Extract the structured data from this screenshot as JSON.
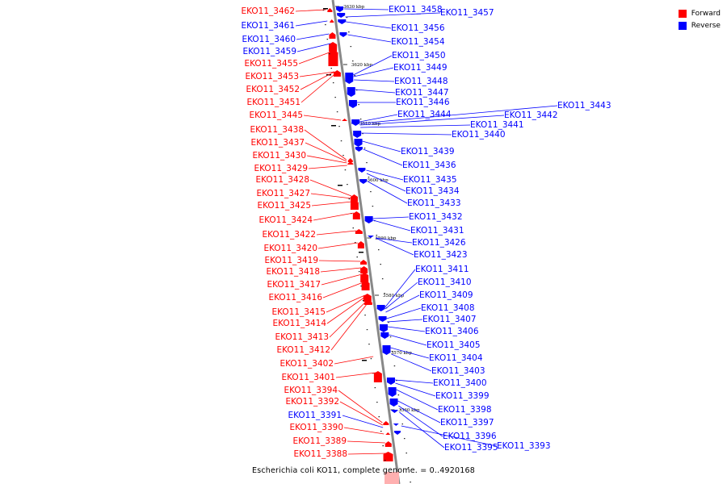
{
  "legend": [
    {
      "label": "Forward",
      "color": "#ff0000"
    },
    {
      "label": "Reverse",
      "color": "#0000ff"
    }
  ],
  "caption": "Escherichia coli KO11, complete genome. = 0..4920168",
  "colors": {
    "forward": "#ff0000",
    "reverse": "#0000ff",
    "backbone": "#888888"
  },
  "ticks": [
    "3630 kbp",
    "3620 kbp",
    "3610 kbp",
    "3600 kbp",
    "3590 kbp",
    "3580 kbp",
    "3570 kbp",
    "3560 kbp"
  ],
  "forward_labels": [
    "EKO11_3462",
    "EKO11_3461",
    "EKO11_3460",
    "EKO11_3459",
    "EKO11_3455",
    "EKO11_3453",
    "EKO11_3452",
    "EKO11_3451",
    "EKO11_3445",
    "EKO11_3438",
    "EKO11_3437",
    "EKO11_3430",
    "EKO11_3429",
    "EKO11_3428",
    "EKO11_3427",
    "EKO11_3425",
    "EKO11_3424",
    "EKO11_3422",
    "EKO11_3420",
    "EKO11_3419",
    "EKO11_3418",
    "EKO11_3417",
    "EKO11_3416",
    "EKO11_3415",
    "EKO11_3414",
    "EKO11_3413",
    "EKO11_3412",
    "EKO11_3402",
    "EKO11_3401",
    "EKO11_3394",
    "EKO11_3392",
    "EKO11_3391",
    "EKO11_3390",
    "EKO11_3389",
    "EKO11_3388"
  ],
  "forward_colored": [
    "red",
    "blue",
    "blue",
    "blue",
    "red",
    "red",
    "red",
    "red",
    "red",
    "red",
    "red",
    "red",
    "red",
    "red",
    "red",
    "red",
    "red",
    "red",
    "red",
    "red",
    "red",
    "red",
    "red",
    "red",
    "red",
    "red",
    "red",
    "red",
    "red",
    "red",
    "red",
    "blue",
    "red",
    "red",
    "red"
  ],
  "reverse_labels": [
    "EKO11_3458",
    "EKO11_3457",
    "EKO11_3456",
    "EKO11_3454",
    "EKO11_3450",
    "EKO11_3449",
    "EKO11_3448",
    "EKO11_3447",
    "EKO11_3446",
    "EKO11_3444",
    "EKO11_3443",
    "EKO11_3442",
    "EKO11_3441",
    "EKO11_3440",
    "EKO11_3439",
    "EKO11_3436",
    "EKO11_3435",
    "EKO11_3434",
    "EKO11_3433",
    "EKO11_3432",
    "EKO11_3431",
    "EKO11_3426",
    "EKO11_3423",
    "EKO11_3411",
    "EKO11_3410",
    "EKO11_3409",
    "EKO11_3408",
    "EKO11_3407",
    "EKO11_3406",
    "EKO11_3405",
    "EKO11_3404",
    "EKO11_3403",
    "EKO11_3400",
    "EKO11_3399",
    "EKO11_3398",
    "EKO11_3397",
    "EKO11_3396",
    "EKO11_3395",
    "EKO11_3393"
  ]
}
